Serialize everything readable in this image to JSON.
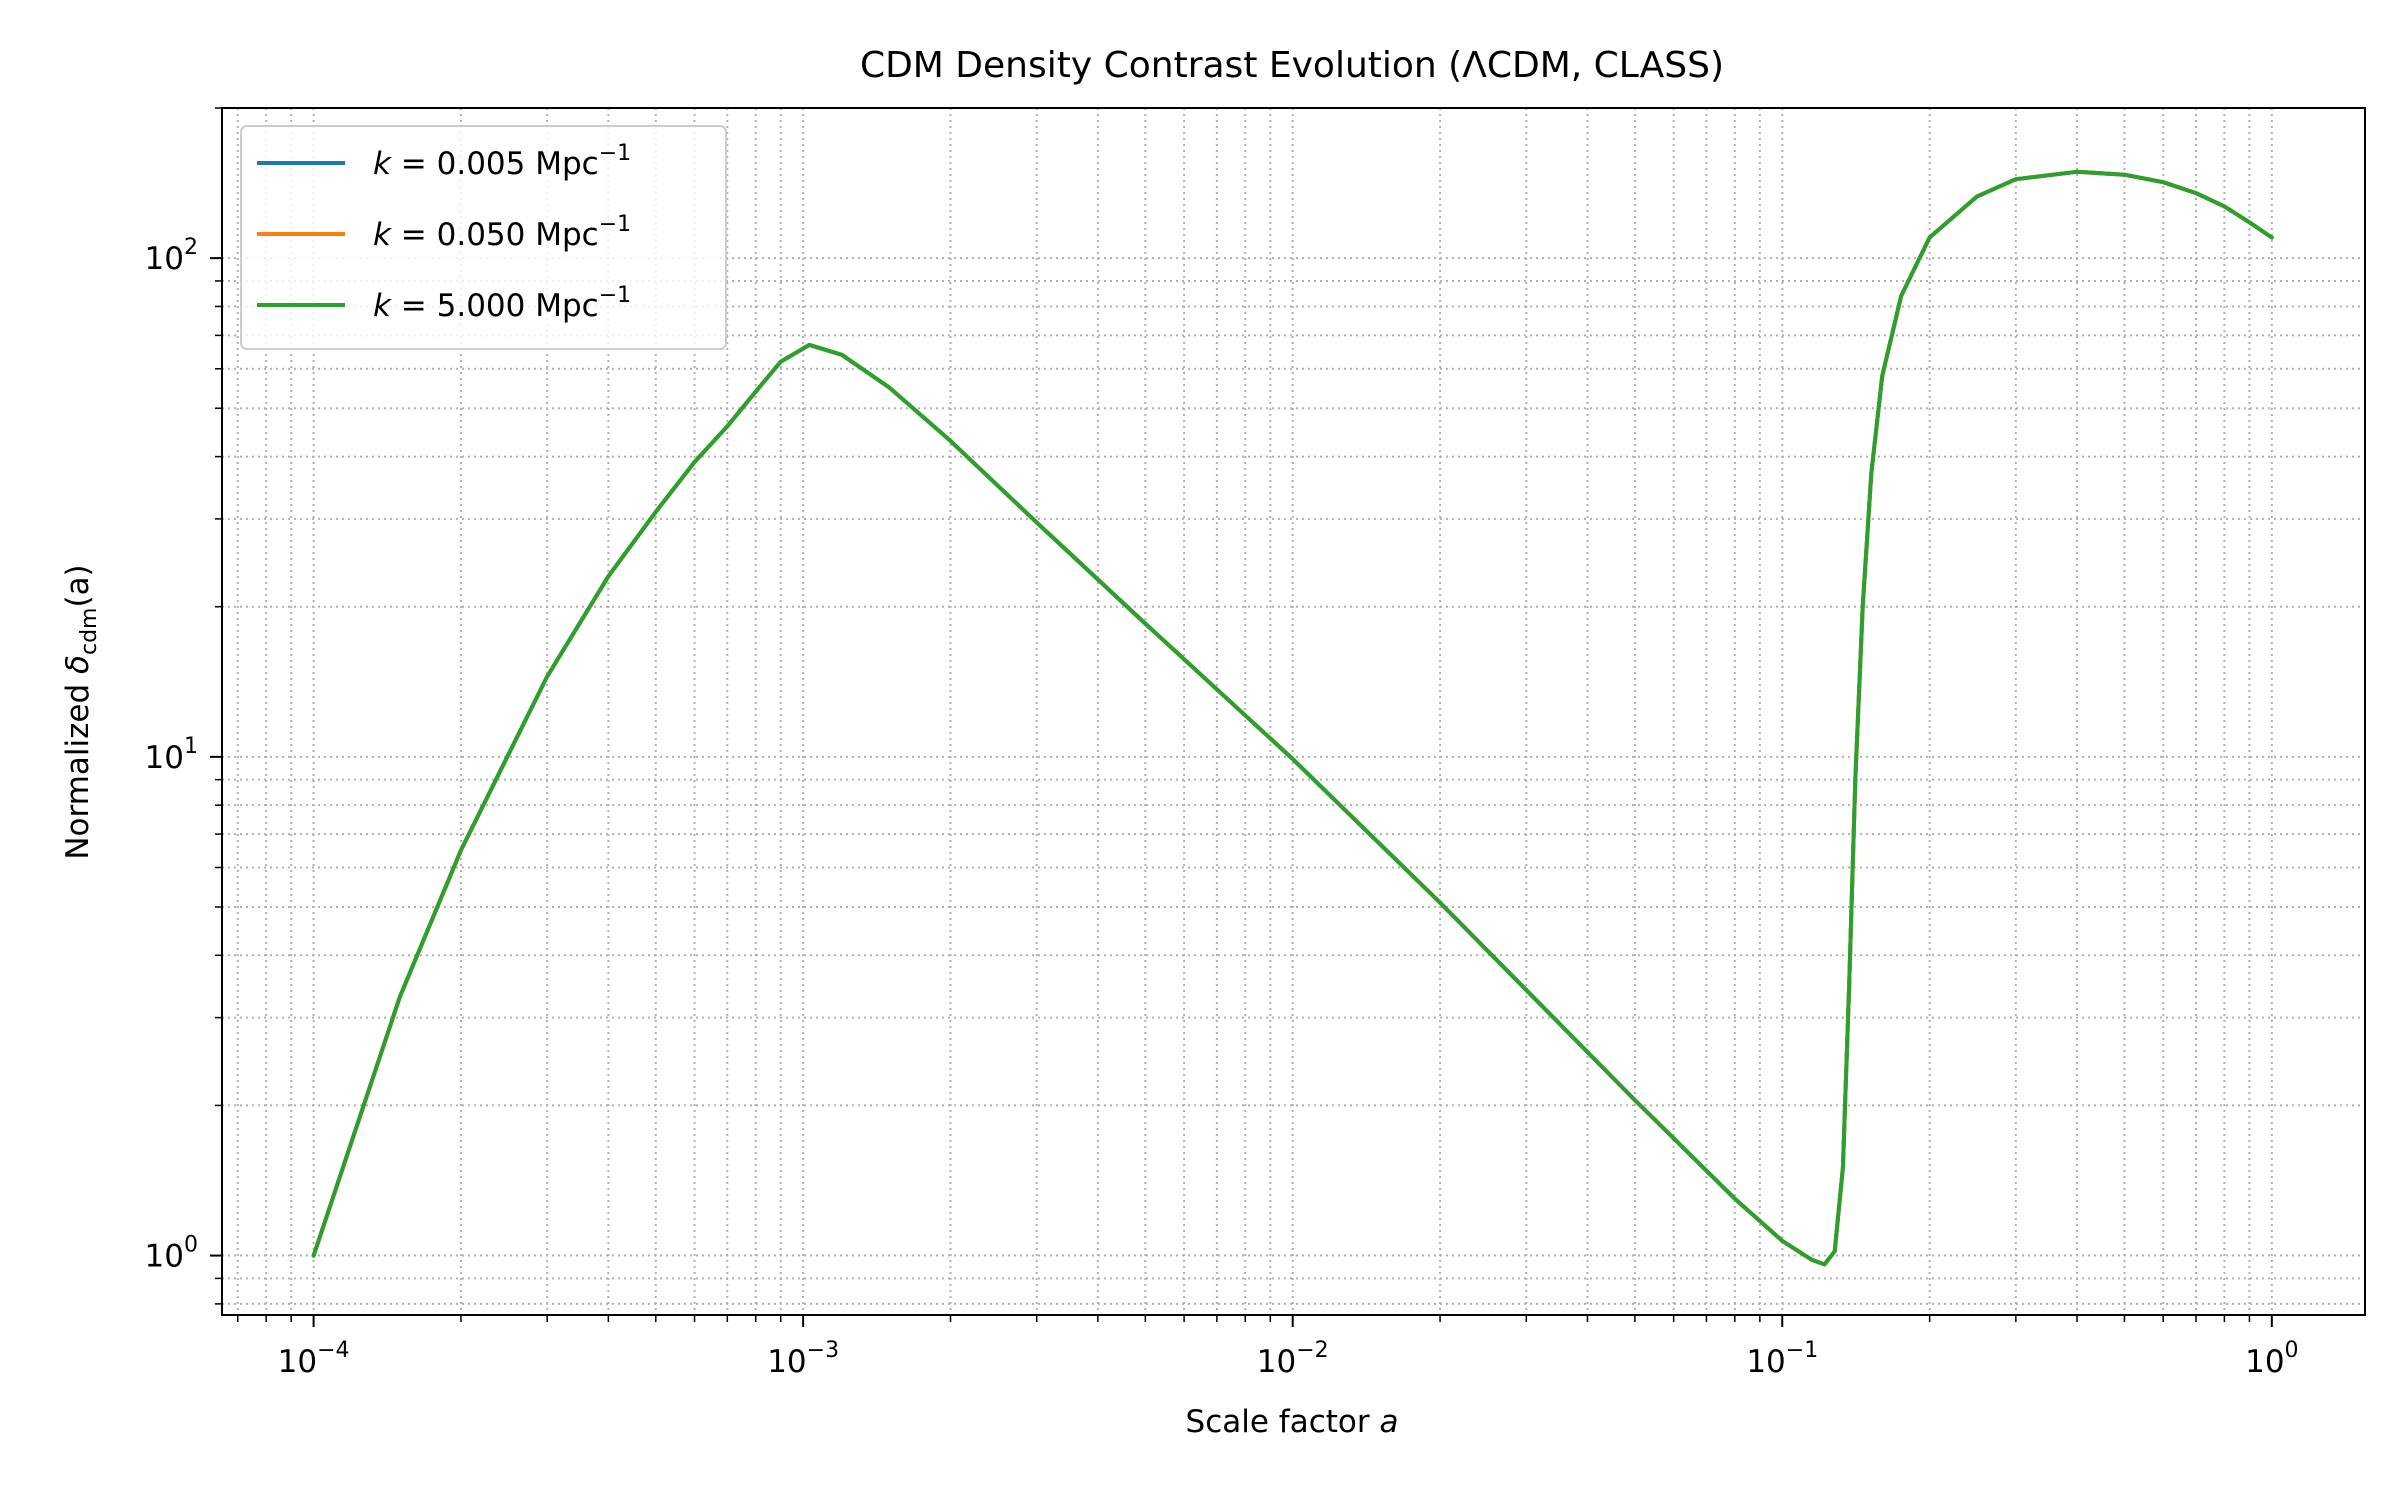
{
  "chart_data": {
    "type": "line",
    "title": "CDM Density Contrast Evolution (ΛCDM, CLASS)",
    "xlabel": {
      "text": "Scale factor ",
      "var": "a"
    },
    "ylabel": {
      "prefix": "Normalized ",
      "symbol": "δ",
      "subscript": "cdm",
      "suffix": "(a)"
    },
    "x_scale": "log",
    "y_scale": "log",
    "xlim": [
      6.5e-05,
      1.55
    ],
    "ylim": [
      0.76,
      200
    ],
    "grid": true,
    "legend_position": "top-left",
    "xticks": [
      {
        "value": 0.0001,
        "base": "10",
        "exp": "−4"
      },
      {
        "value": 0.001,
        "base": "10",
        "exp": "−3"
      },
      {
        "value": 0.01,
        "base": "10",
        "exp": "−2"
      },
      {
        "value": 0.1,
        "base": "10",
        "exp": "−1"
      },
      {
        "value": 1,
        "base": "10",
        "exp": "0"
      }
    ],
    "yticks": [
      {
        "value": 1,
        "base": "10",
        "exp": "0"
      },
      {
        "value": 10,
        "base": "10",
        "exp": "1"
      },
      {
        "value": 100,
        "base": "10",
        "exp": "2"
      }
    ],
    "curve_points": [
      [
        0.0001,
        1.0
      ],
      [
        0.00015,
        3.3
      ],
      [
        0.0002,
        6.5
      ],
      [
        0.0003,
        14.5
      ],
      [
        0.0004,
        23
      ],
      [
        0.0005,
        31
      ],
      [
        0.0006,
        39
      ],
      [
        0.0007,
        46
      ],
      [
        0.0008,
        54
      ],
      [
        0.0009,
        62
      ],
      [
        0.00103,
        67
      ],
      [
        0.0012,
        64
      ],
      [
        0.0015,
        55
      ],
      [
        0.002,
        43
      ],
      [
        0.003,
        29.5
      ],
      [
        0.005,
        18.5
      ],
      [
        0.01,
        9.9
      ],
      [
        0.02,
        5.1
      ],
      [
        0.05,
        2.05
      ],
      [
        0.08,
        1.3
      ],
      [
        0.1,
        1.07
      ],
      [
        0.115,
        0.98
      ],
      [
        0.122,
        0.96
      ],
      [
        0.128,
        1.02
      ],
      [
        0.133,
        1.5
      ],
      [
        0.137,
        3.5
      ],
      [
        0.141,
        9
      ],
      [
        0.146,
        20
      ],
      [
        0.152,
        37
      ],
      [
        0.16,
        58
      ],
      [
        0.175,
        84
      ],
      [
        0.2,
        110
      ],
      [
        0.25,
        133
      ],
      [
        0.3,
        144
      ],
      [
        0.4,
        149
      ],
      [
        0.5,
        147
      ],
      [
        0.6,
        142
      ],
      [
        0.7,
        135
      ],
      [
        0.8,
        127
      ],
      [
        0.9,
        118
      ],
      [
        1.0,
        110
      ]
    ],
    "series": [
      {
        "name": {
          "var": "k",
          "text": " = 0.005 Mpc",
          "sup": "−1"
        },
        "color": "#1f77b4"
      },
      {
        "name": {
          "var": "k",
          "text": " = 0.050 Mpc",
          "sup": "−1"
        },
        "color": "#ff7f0e"
      },
      {
        "name": {
          "var": "k",
          "text": " = 5.000 Mpc",
          "sup": "−1"
        },
        "color": "#2ca02c"
      }
    ]
  }
}
